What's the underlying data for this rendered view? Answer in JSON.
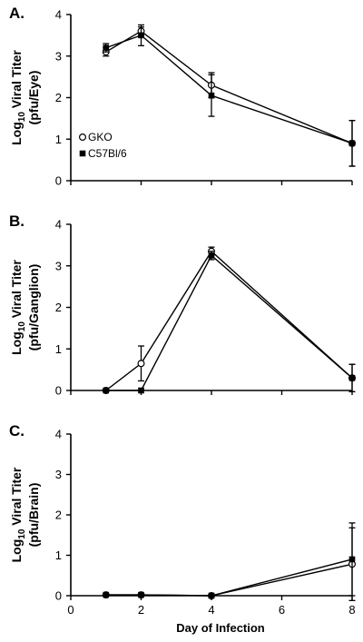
{
  "chart_data": [
    {
      "type": "line",
      "panel_label": "A.",
      "ylabel_log": "Log",
      "ylabel_sub": "10",
      "ylabel_rest": " Viral Titer",
      "ylabel_line2": "(pfu/Eye)",
      "xlabel": "",
      "xlim": [
        0,
        8
      ],
      "ylim": [
        0,
        4
      ],
      "x_ticks": [
        0,
        2,
        4,
        6,
        8
      ],
      "y_ticks": [
        0,
        1,
        2,
        3,
        4
      ],
      "x_tick_labels": [],
      "y_tick_labels": [
        "0",
        "1",
        "2",
        "3",
        "4"
      ],
      "legend": [
        {
          "name": "GKO",
          "marker": "circle-open"
        },
        {
          "name": "C57Bl/6",
          "marker": "square-filled"
        }
      ],
      "series": [
        {
          "name": "GKO",
          "marker": "circle-open",
          "x": [
            1,
            2,
            4,
            8
          ],
          "y": [
            3.1,
            3.6,
            2.3,
            0.9
          ],
          "err": [
            0.1,
            0.1,
            0.3,
            0.55
          ]
        },
        {
          "name": "C57Bl/6",
          "marker": "square-filled",
          "x": [
            1,
            2,
            4,
            8
          ],
          "y": [
            3.2,
            3.5,
            2.05,
            0.9
          ],
          "err": [
            0.1,
            0.25,
            0.5,
            0.55
          ]
        }
      ]
    },
    {
      "type": "line",
      "panel_label": "B.",
      "ylabel_log": "Log",
      "ylabel_sub": "10",
      "ylabel_rest": " Viral Titer",
      "ylabel_line2": "(pfu/Ganglion)",
      "xlabel": "",
      "xlim": [
        0,
        8
      ],
      "ylim": [
        0,
        4
      ],
      "x_ticks": [
        0,
        2,
        4,
        6,
        8
      ],
      "y_ticks": [
        0,
        1,
        2,
        3,
        4
      ],
      "x_tick_labels": [],
      "y_tick_labels": [
        "0",
        "1",
        "2",
        "3",
        "4"
      ],
      "legend": [],
      "series": [
        {
          "name": "GKO",
          "marker": "circle-open",
          "x": [
            1,
            2,
            4,
            8
          ],
          "y": [
            0,
            0.65,
            3.35,
            0.3
          ],
          "err": [
            0,
            0.42,
            0.1,
            0.33
          ]
        },
        {
          "name": "C57Bl/6",
          "marker": "square-filled",
          "x": [
            1,
            2,
            4,
            8
          ],
          "y": [
            0,
            0,
            3.25,
            0.3
          ],
          "err": [
            0,
            0,
            0.1,
            0.33
          ]
        }
      ]
    },
    {
      "type": "line",
      "panel_label": "C.",
      "ylabel_log": "Log",
      "ylabel_sub": "10",
      "ylabel_rest": " Viral Titer",
      "ylabel_line2": "(pfu/Brain)",
      "xlabel": "Day of Infection",
      "xlim": [
        0,
        8
      ],
      "ylim": [
        0,
        4
      ],
      "x_ticks": [
        0,
        2,
        4,
        6,
        8
      ],
      "y_ticks": [
        0,
        1,
        2,
        3,
        4
      ],
      "x_tick_labels": [
        "0",
        "2",
        "4",
        "6",
        "8"
      ],
      "y_tick_labels": [
        "0",
        "1",
        "2",
        "3",
        "4"
      ],
      "legend": [],
      "series": [
        {
          "name": "GKO",
          "marker": "circle-open",
          "x": [
            1,
            2,
            4,
            8
          ],
          "y": [
            0.02,
            0.02,
            0,
            0.78
          ],
          "err": [
            0,
            0,
            0,
            0.9
          ]
        },
        {
          "name": "C57Bl/6",
          "marker": "square-filled",
          "x": [
            1,
            2,
            4,
            8
          ],
          "y": [
            0.02,
            0.02,
            0,
            0.9
          ],
          "err": [
            0,
            0,
            0,
            0.9
          ]
        }
      ]
    }
  ]
}
